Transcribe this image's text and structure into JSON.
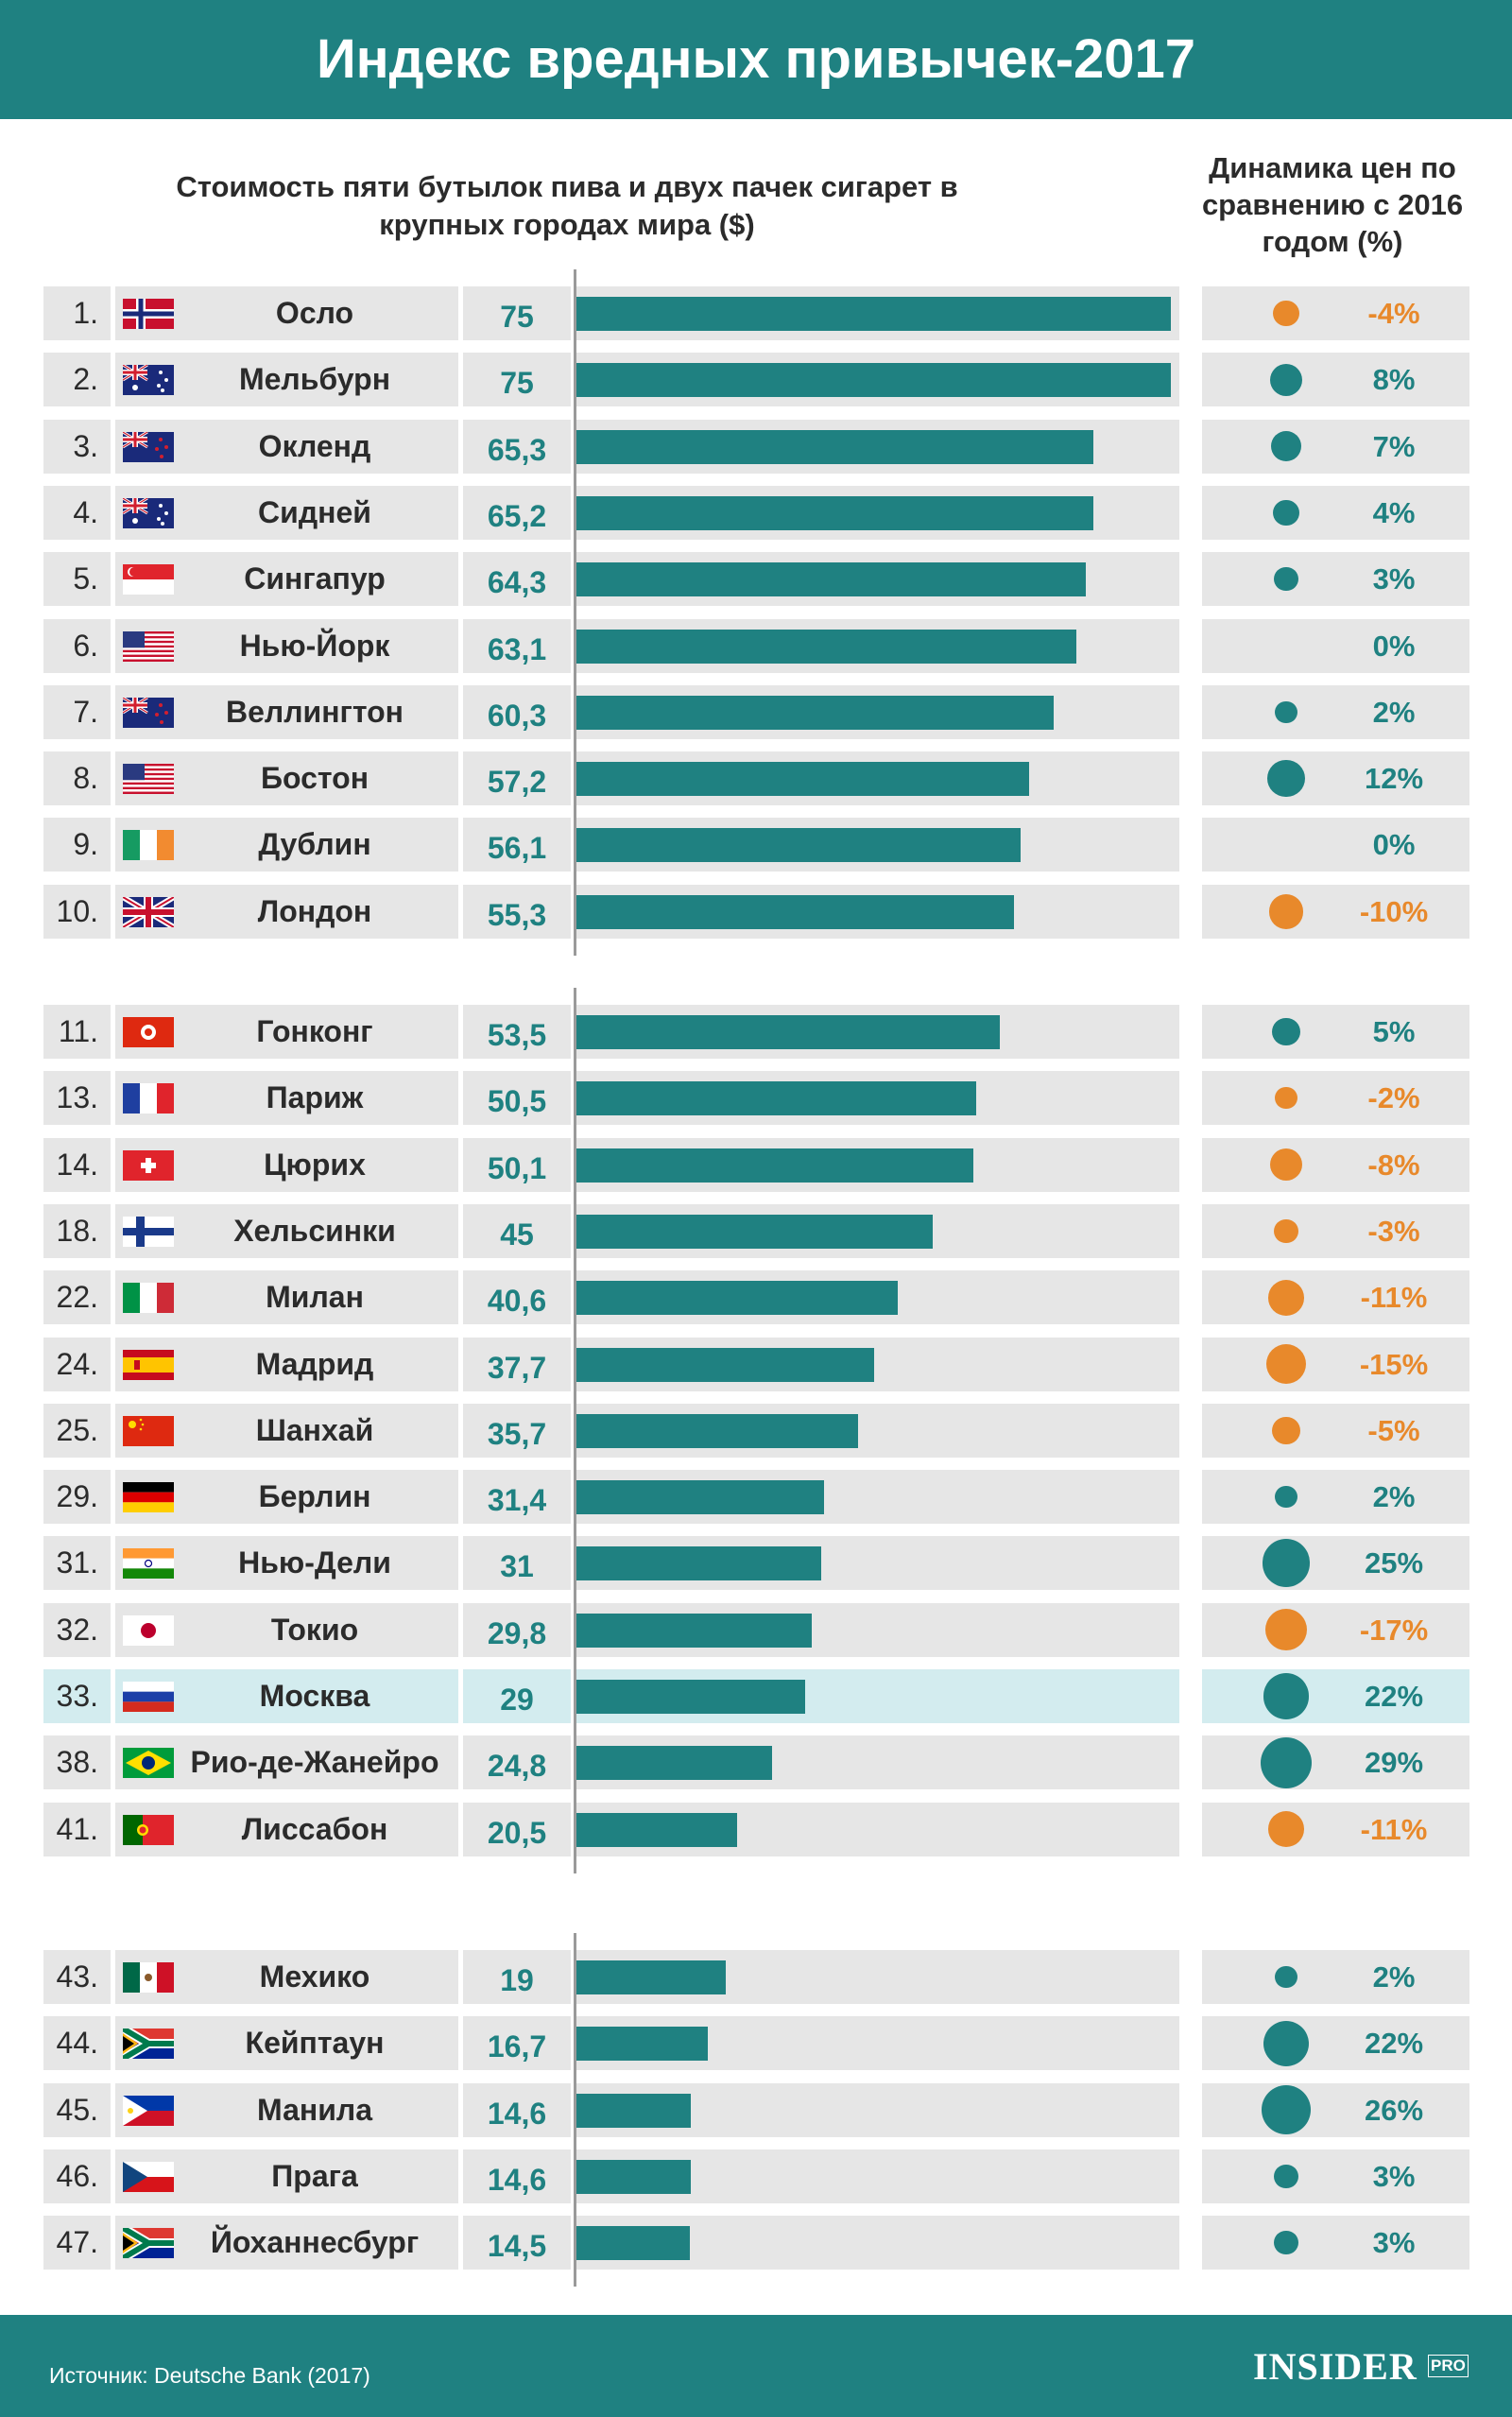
{
  "title": "Индекс вредных привычек-2017",
  "subtitle_left": "Стоимость пяти бутылок пива и двух пачек сигарет в крупных городах мира ($)",
  "subtitle_right": "Динамика цен по сравнению с 2016 годом (%)",
  "source": "Источник: Deutsche Bank (2017)",
  "logo": {
    "text": "INSIDER",
    "suffix": "PRO"
  },
  "colors": {
    "accent": "#1f8181",
    "positive": "#1f8181",
    "negative": "#e8892b",
    "highlight": "#d3ecef"
  },
  "chart_data": {
    "type": "bar",
    "orientation": "horizontal",
    "unit": "$",
    "change_unit": "%",
    "xlim": [
      0,
      75
    ],
    "groups": [
      [
        {
          "rank": "1.",
          "city": "Осло",
          "flag": "norway-flag",
          "value": 75,
          "value_label": "75",
          "change": -4,
          "change_label": "-4%"
        },
        {
          "rank": "2.",
          "city": "Мельбурн",
          "flag": "australia-flag",
          "value": 75,
          "value_label": "75",
          "change": 8,
          "change_label": "8%"
        },
        {
          "rank": "3.",
          "city": "Окленд",
          "flag": "new-zealand-flag",
          "value": 65.3,
          "value_label": "65,3",
          "change": 7,
          "change_label": "7%"
        },
        {
          "rank": "4.",
          "city": "Сидней",
          "flag": "australia-flag",
          "value": 65.2,
          "value_label": "65,2",
          "change": 4,
          "change_label": "4%"
        },
        {
          "rank": "5.",
          "city": "Сингапур",
          "flag": "singapore-flag",
          "value": 64.3,
          "value_label": "64,3",
          "change": 3,
          "change_label": "3%"
        },
        {
          "rank": "6.",
          "city": "Нью-Йорк",
          "flag": "usa-flag",
          "value": 63.1,
          "value_label": "63,1",
          "change": 0,
          "change_label": "0%"
        },
        {
          "rank": "7.",
          "city": "Веллингтон",
          "flag": "new-zealand-flag",
          "value": 60.3,
          "value_label": "60,3",
          "change": 2,
          "change_label": "2%"
        },
        {
          "rank": "8.",
          "city": "Бостон",
          "flag": "usa-flag",
          "value": 57.2,
          "value_label": "57,2",
          "change": 12,
          "change_label": "12%"
        },
        {
          "rank": "9.",
          "city": "Дублин",
          "flag": "ireland-flag",
          "value": 56.1,
          "value_label": "56,1",
          "change": 0,
          "change_label": "0%"
        },
        {
          "rank": "10.",
          "city": "Лондон",
          "flag": "uk-flag",
          "value": 55.3,
          "value_label": "55,3",
          "change": -10,
          "change_label": "-10%"
        }
      ],
      [
        {
          "rank": "11.",
          "city": "Гонконг",
          "flag": "hong-kong-flag",
          "value": 53.5,
          "value_label": "53,5",
          "change": 5,
          "change_label": "5%"
        },
        {
          "rank": "13.",
          "city": "Париж",
          "flag": "france-flag",
          "value": 50.5,
          "value_label": "50,5",
          "change": -2,
          "change_label": "-2%"
        },
        {
          "rank": "14.",
          "city": "Цюрих",
          "flag": "switzerland-flag",
          "value": 50.1,
          "value_label": "50,1",
          "change": -8,
          "change_label": "-8%"
        },
        {
          "rank": "18.",
          "city": "Хельсинки",
          "flag": "finland-flag",
          "value": 45,
          "value_label": "45",
          "change": -3,
          "change_label": "-3%"
        },
        {
          "rank": "22.",
          "city": "Милан",
          "flag": "italy-flag",
          "value": 40.6,
          "value_label": "40,6",
          "change": -11,
          "change_label": "-11%"
        },
        {
          "rank": "24.",
          "city": "Мадрид",
          "flag": "spain-flag",
          "value": 37.7,
          "value_label": "37,7",
          "change": -15,
          "change_label": "-15%"
        },
        {
          "rank": "25.",
          "city": "Шанхай",
          "flag": "china-flag",
          "value": 35.7,
          "value_label": "35,7",
          "change": -5,
          "change_label": "-5%"
        },
        {
          "rank": "29.",
          "city": "Берлин",
          "flag": "germany-flag",
          "value": 31.4,
          "value_label": "31,4",
          "change": 2,
          "change_label": "2%"
        },
        {
          "rank": "31.",
          "city": "Нью-Дели",
          "flag": "india-flag",
          "value": 31,
          "value_label": "31",
          "change": 25,
          "change_label": "25%"
        },
        {
          "rank": "32.",
          "city": "Токио",
          "flag": "japan-flag",
          "value": 29.8,
          "value_label": "29,8",
          "change": -17,
          "change_label": "-17%"
        },
        {
          "rank": "33.",
          "city": "Москва",
          "flag": "russia-flag",
          "value": 29,
          "value_label": "29",
          "change": 22,
          "change_label": "22%",
          "highlight": true
        },
        {
          "rank": "38.",
          "city": "Рио-де-Жанейро",
          "flag": "brazil-flag",
          "value": 24.8,
          "value_label": "24,8",
          "change": 29,
          "change_label": "29%"
        },
        {
          "rank": "41.",
          "city": "Лиссабон",
          "flag": "portugal-flag",
          "value": 20.5,
          "value_label": "20,5",
          "change": -11,
          "change_label": "-11%"
        }
      ],
      [
        {
          "rank": "43.",
          "city": "Мехико",
          "flag": "mexico-flag",
          "value": 19,
          "value_label": "19",
          "change": 2,
          "change_label": "2%"
        },
        {
          "rank": "44.",
          "city": "Кейптаун",
          "flag": "south-africa-flag",
          "value": 16.7,
          "value_label": "16,7",
          "change": 22,
          "change_label": "22%"
        },
        {
          "rank": "45.",
          "city": "Манила",
          "flag": "philippines-flag",
          "value": 14.6,
          "value_label": "14,6",
          "change": 26,
          "change_label": "26%"
        },
        {
          "rank": "46.",
          "city": "Прага",
          "flag": "czech-flag",
          "value": 14.6,
          "value_label": "14,6",
          "change": 3,
          "change_label": "3%"
        },
        {
          "rank": "47.",
          "city": "Йоханнесбург",
          "flag": "south-africa-flag",
          "value": 14.5,
          "value_label": "14,5",
          "change": 3,
          "change_label": "3%"
        }
      ]
    ]
  }
}
